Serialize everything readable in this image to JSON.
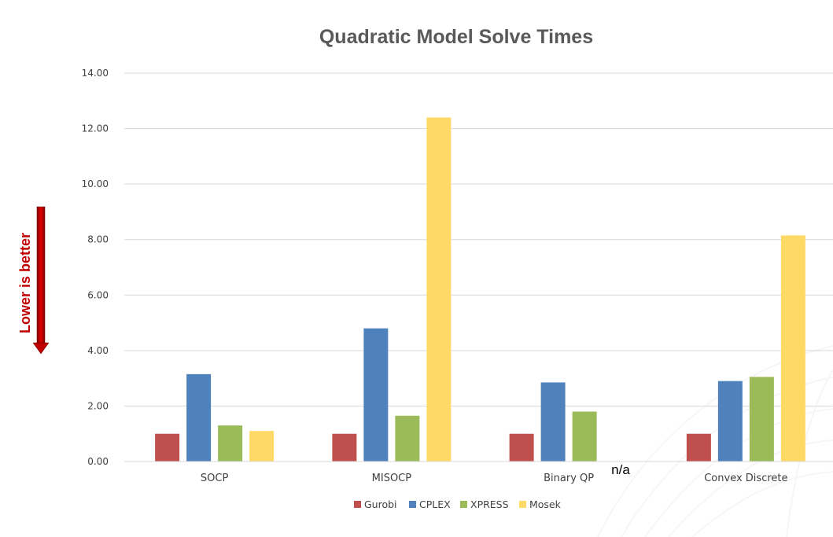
{
  "chart_data": {
    "type": "bar",
    "title": "Quadratic Model Solve Times",
    "xlabel": "",
    "ylabel": "",
    "ylim": [
      0,
      14
    ],
    "y_ticks": [
      "0.00",
      "2.00",
      "4.00",
      "6.00",
      "8.00",
      "10.00",
      "12.00",
      "14.00"
    ],
    "grid": true,
    "legend_position": "bottom",
    "categories": [
      "SOCP",
      "MISOCP",
      "Binary QP",
      "Convex Discrete"
    ],
    "series": [
      {
        "name": "Gurobi",
        "color": "#c0504d",
        "values": [
          1.0,
          1.0,
          1.0,
          1.0
        ]
      },
      {
        "name": "CPLEX",
        "color": "#4f81bd",
        "values": [
          3.15,
          4.8,
          2.85,
          2.9
        ]
      },
      {
        "name": "XPRESS",
        "color": "#9bbb59",
        "values": [
          1.3,
          1.65,
          1.8,
          3.05
        ]
      },
      {
        "name": "Mosek",
        "color": "#ffd966",
        "values": [
          1.1,
          12.4,
          null,
          8.15
        ]
      }
    ],
    "annotations": [
      {
        "text": "n/a",
        "category": "Binary QP",
        "series": "Mosek"
      }
    ],
    "side_note": {
      "text": "Lower is better",
      "color": "#c00000",
      "arrow_color": "#c00000"
    }
  }
}
